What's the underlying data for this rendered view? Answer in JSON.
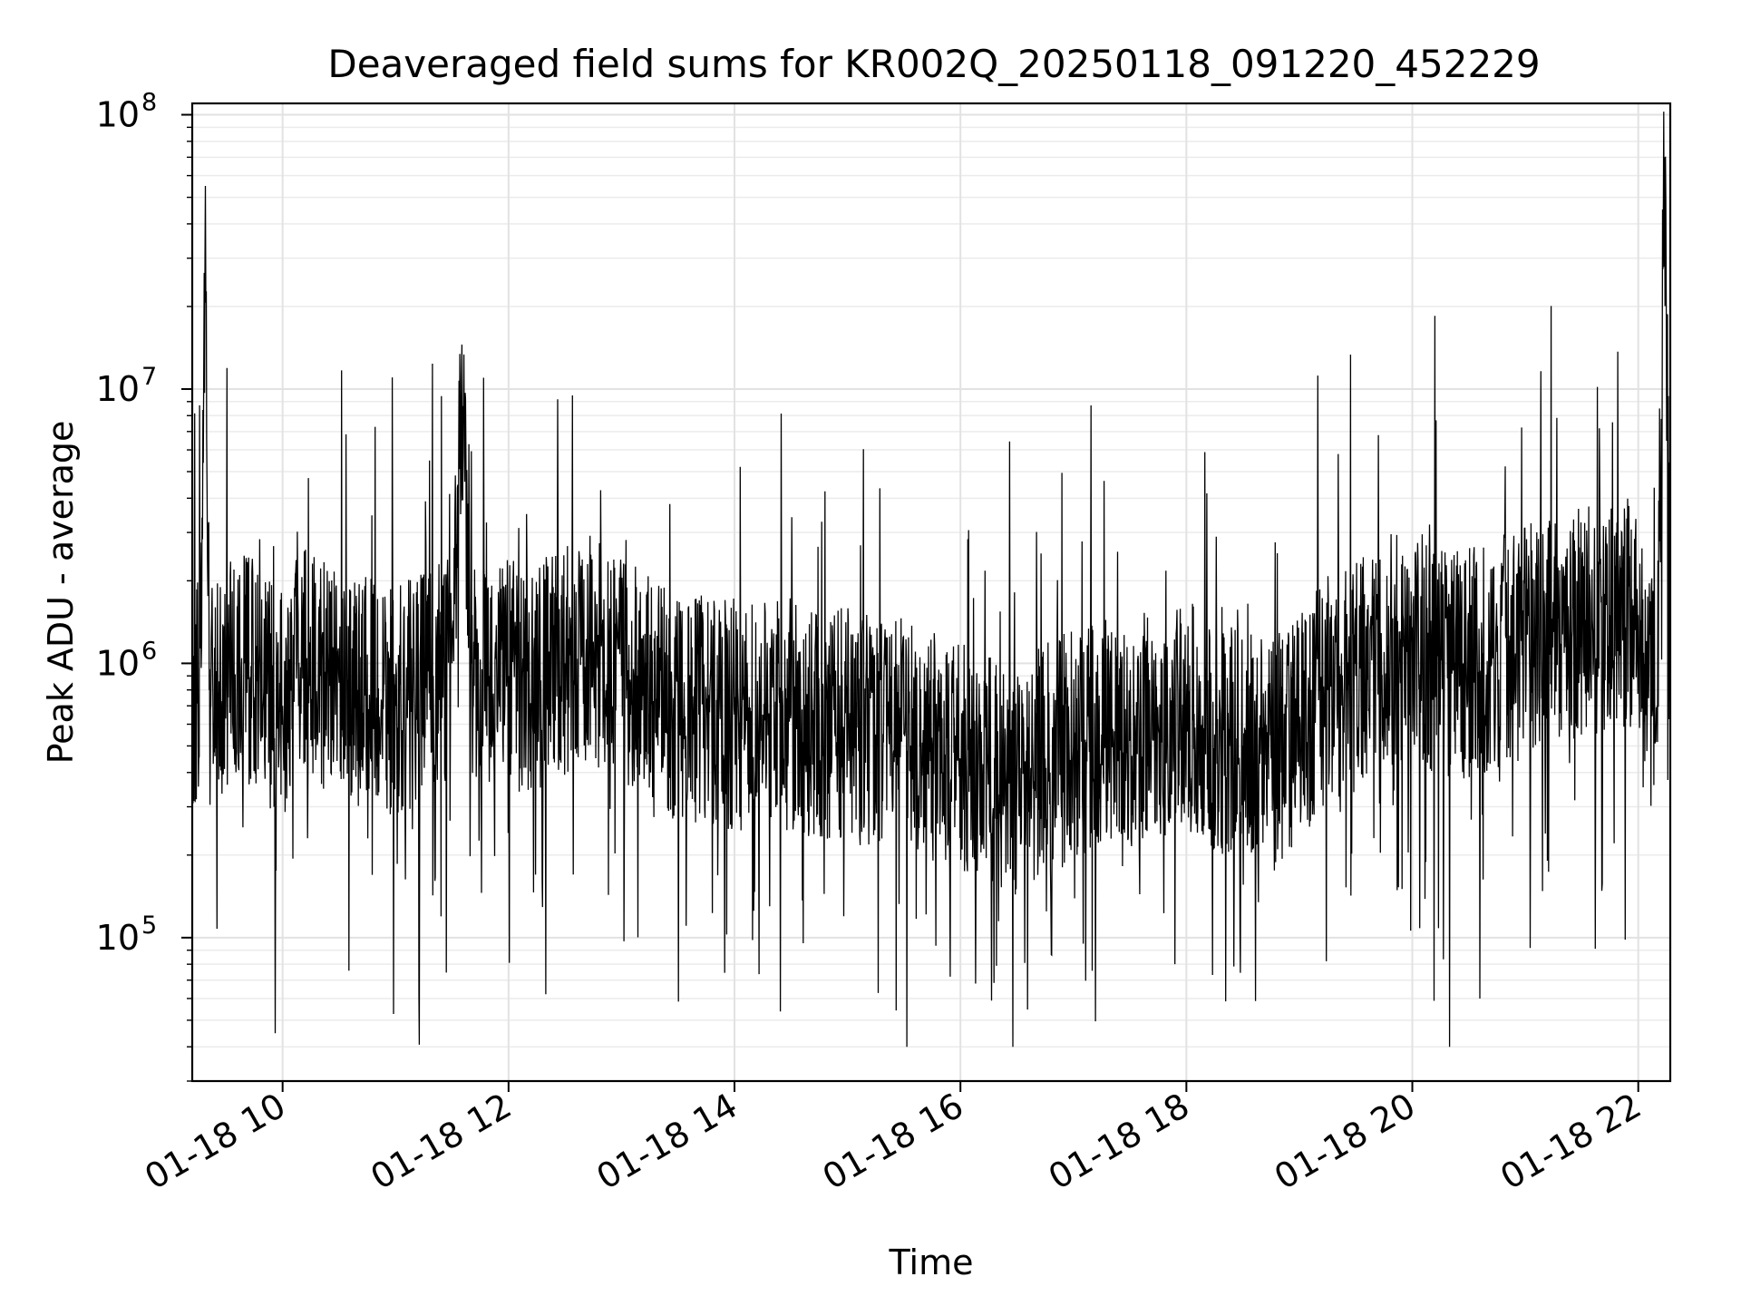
{
  "chart_data": {
    "type": "line",
    "title": "Deaveraged field sums for KR002Q_20250118_091220_452229",
    "xlabel": "Time",
    "ylabel": "Peak ADU - average",
    "yscale": "log",
    "ylim": [
      30000,
      110000000
    ],
    "xlim": [
      "01-18 09:12",
      "01-18 22:17"
    ],
    "grid": "major and minor, light gray",
    "legend": "none",
    "line_color": "#000000",
    "x_ticks": [
      {
        "label": "01-18 10",
        "value": "01-18 10:00"
      },
      {
        "label": "01-18 12",
        "value": "01-18 12:00"
      },
      {
        "label": "01-18 14",
        "value": "01-18 14:00"
      },
      {
        "label": "01-18 16",
        "value": "01-18 16:00"
      },
      {
        "label": "01-18 18",
        "value": "01-18 18:00"
      },
      {
        "label": "01-18 20",
        "value": "01-18 20:00"
      },
      {
        "label": "01-18 22",
        "value": "01-18 22:00"
      }
    ],
    "y_ticks": [
      {
        "base": "10",
        "exp": "5",
        "value": 100000
      },
      {
        "base": "10",
        "exp": "6",
        "value": 1000000
      },
      {
        "base": "10",
        "exp": "7",
        "value": 10000000
      },
      {
        "base": "10",
        "exp": "8",
        "value": 100000000
      }
    ],
    "series": [
      {
        "x": [
          "01-18 09:12",
          "01-18 09:17",
          "01-18 09:19",
          "01-18 09:21",
          "01-18 09:30",
          "01-18 09:40",
          "01-18 09:50",
          "01-18 10:00",
          "01-18 10:10",
          "01-18 10:20",
          "01-18 10:30",
          "01-18 10:40",
          "01-18 10:50",
          "01-18 11:00",
          "01-18 11:10",
          "01-18 11:20",
          "01-18 11:30",
          "01-18 11:35",
          "01-18 11:40",
          "01-18 11:50",
          "01-18 12:00",
          "01-18 12:15",
          "01-18 12:30",
          "01-18 12:45",
          "01-18 13:00",
          "01-18 13:15",
          "01-18 13:30",
          "01-18 13:45",
          "01-18 14:00",
          "01-18 14:15",
          "01-18 14:30",
          "01-18 14:45",
          "01-18 15:00",
          "01-18 15:15",
          "01-18 15:30",
          "01-18 15:45",
          "01-18 16:00",
          "01-18 16:15",
          "01-18 16:30",
          "01-18 16:45",
          "01-18 17:00",
          "01-18 17:15",
          "01-18 17:30",
          "01-18 17:45",
          "01-18 18:00",
          "01-18 18:15",
          "01-18 18:30",
          "01-18 18:45",
          "01-18 19:00",
          "01-18 19:15",
          "01-18 19:30",
          "01-18 19:45",
          "01-18 20:00",
          "01-18 20:15",
          "01-18 20:30",
          "01-18 20:45",
          "01-18 21:00",
          "01-18 21:15",
          "01-18 21:30",
          "01-18 21:45",
          "01-18 22:00",
          "01-18 22:10",
          "01-18 22:14",
          "01-18 22:17"
        ],
        "y": [
          600000,
          1200000,
          55000000,
          800000,
          900000,
          1000000,
          800000,
          700000,
          1100000,
          900000,
          850000,
          800000,
          750000,
          700000,
          800000,
          900000,
          1000000,
          11000000,
          1000000,
          900000,
          900000,
          900000,
          1000000,
          1200000,
          900000,
          800000,
          700000,
          700000,
          650000,
          650000,
          650000,
          600000,
          600000,
          550000,
          550000,
          500000,
          450000,
          400000,
          380000,
          450000,
          500000,
          550000,
          550000,
          600000,
          650000,
          550000,
          500000,
          450000,
          600000,
          800000,
          900000,
          1100000,
          1200000,
          1000000,
          1000000,
          1100000,
          1200000,
          1300000,
          1400000,
          1500000,
          1500000,
          700000,
          70000000,
          900000
        ]
      }
    ]
  }
}
